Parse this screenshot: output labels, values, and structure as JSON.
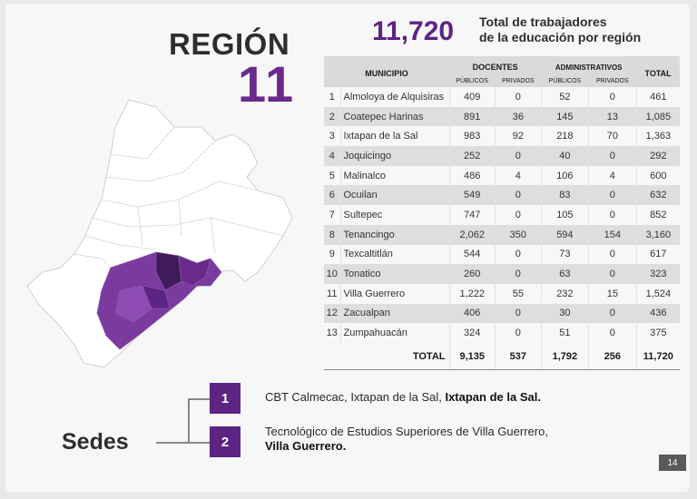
{
  "region": {
    "word": "REGIÓN",
    "number": "11"
  },
  "headline": {
    "total": "11,720",
    "line1": "Total de trabajadores",
    "line2": "de la educación por región"
  },
  "table": {
    "col_municipio": "MUNICIPIO",
    "col_docentes": "DOCENTES",
    "col_administrativos": "ADMINISTRATIVOS",
    "col_total": "TOTAL",
    "sub_publicos": "PÚBLICOS",
    "sub_privados": "PRIVADOS",
    "rows": [
      {
        "idx": "1",
        "name": "Almoloya de Alquisiras",
        "dpub": "409",
        "dpriv": "0",
        "apub": "52",
        "apriv": "0",
        "total": "461"
      },
      {
        "idx": "2",
        "name": "Coatepec Harinas",
        "dpub": "891",
        "dpriv": "36",
        "apub": "145",
        "apriv": "13",
        "total": "1,085"
      },
      {
        "idx": "3",
        "name": "Ixtapan de la Sal",
        "dpub": "983",
        "dpriv": "92",
        "apub": "218",
        "apriv": "70",
        "total": "1,363"
      },
      {
        "idx": "4",
        "name": "Joquicingo",
        "dpub": "252",
        "dpriv": "0",
        "apub": "40",
        "apriv": "0",
        "total": "292"
      },
      {
        "idx": "5",
        "name": "Malinalco",
        "dpub": "486",
        "dpriv": "4",
        "apub": "106",
        "apriv": "4",
        "total": "600"
      },
      {
        "idx": "6",
        "name": "Ocuilan",
        "dpub": "549",
        "dpriv": "0",
        "apub": "83",
        "apriv": "0",
        "total": "632"
      },
      {
        "idx": "7",
        "name": "Sultepec",
        "dpub": "747",
        "dpriv": "0",
        "apub": "105",
        "apriv": "0",
        "total": "852"
      },
      {
        "idx": "8",
        "name": "Tenancingo",
        "dpub": "2,062",
        "dpriv": "350",
        "apub": "594",
        "apriv": "154",
        "total": "3,160"
      },
      {
        "idx": "9",
        "name": "Texcaltitlán",
        "dpub": "544",
        "dpriv": "0",
        "apub": "73",
        "apriv": "0",
        "total": "617"
      },
      {
        "idx": "10",
        "name": "Tonatico",
        "dpub": "260",
        "dpriv": "0",
        "apub": "63",
        "apriv": "0",
        "total": "323"
      },
      {
        "idx": "11",
        "name": "Villa Guerrero",
        "dpub": "1,222",
        "dpriv": "55",
        "apub": "232",
        "apriv": "15",
        "total": "1,524"
      },
      {
        "idx": "12",
        "name": "Zacualpan",
        "dpub": "406",
        "dpriv": "0",
        "apub": "30",
        "apriv": "0",
        "total": "436"
      },
      {
        "idx": "13",
        "name": "Zumpahuacán",
        "dpub": "324",
        "dpriv": "0",
        "apub": "51",
        "apriv": "0",
        "total": "375"
      }
    ],
    "totals": {
      "label": "TOTAL",
      "dpub": "9,135",
      "dpriv": "537",
      "apub": "1,792",
      "apriv": "256",
      "total": "11,720"
    }
  },
  "sedes": {
    "title": "Sedes",
    "items": [
      {
        "num": "1",
        "text": "CBT Calmecac, Ixtapan de la Sal, ",
        "bold": "Ixtapan de la Sal."
      },
      {
        "num": "2",
        "text": "Tecnológico de Estudios Superiores de Villa Guerrero,",
        "bold": "Villa Guerrero."
      }
    ]
  },
  "page_number": "14",
  "colors": {
    "accent": "#5c2483",
    "map_base": "#ffffff",
    "map_highlight": "#6a2a8c",
    "map_dark": "#3f1d5a"
  }
}
